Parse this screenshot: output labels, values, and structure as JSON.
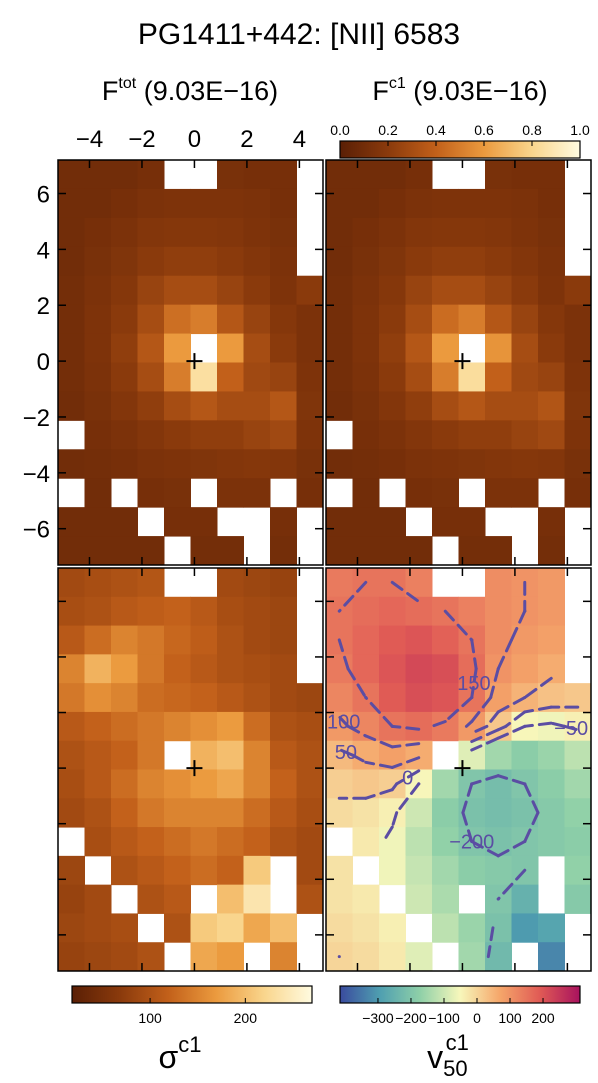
{
  "title": "PG1411+442: [NII] 6583",
  "chart_data": [
    {
      "type": "heatmap",
      "title": "F",
      "title_sup": "tot",
      "title_note": "(9.03E−16)",
      "tick_labels": true,
      "xlim": [
        -5.2,
        4.9
      ],
      "ylim": [
        -7.3,
        7.2
      ],
      "xticks": [
        {
          "value": -4,
          "label": "−4"
        },
        {
          "value": -2,
          "label": "−2"
        },
        0,
        2,
        4
      ],
      "yticks": [
        {
          "value": -6,
          "label": "−6"
        },
        {
          "value": -4,
          "label": "−4"
        },
        {
          "value": -2,
          "label": "−2"
        },
        0,
        2,
        4,
        6
      ],
      "zlim": [
        0,
        1
      ],
      "colormap": [
        "#5a1f05",
        "#8a3a0c",
        "#c2601a",
        "#eb9a3e",
        "#f9d58c",
        "#fffbe0"
      ],
      "z": [
        [
          0.1,
          0.1,
          0.1,
          0.12,
          null,
          null,
          0.13,
          0.12,
          0.12,
          null
        ],
        [
          0.1,
          0.1,
          0.12,
          0.14,
          0.15,
          0.15,
          0.15,
          0.14,
          0.12,
          null
        ],
        [
          0.1,
          0.12,
          0.14,
          0.17,
          0.18,
          0.18,
          0.17,
          0.15,
          0.13,
          null
        ],
        [
          0.1,
          0.13,
          0.16,
          0.2,
          0.22,
          0.22,
          0.2,
          0.17,
          0.14,
          null
        ],
        [
          0.11,
          0.14,
          0.18,
          0.25,
          0.3,
          0.3,
          0.25,
          0.2,
          0.15,
          0.2
        ],
        [
          0.11,
          0.15,
          0.2,
          0.3,
          0.45,
          0.5,
          0.35,
          0.25,
          0.18,
          0.14
        ],
        [
          0.11,
          0.15,
          0.22,
          0.35,
          0.6,
          null,
          0.6,
          0.3,
          0.2,
          0.14
        ],
        [
          0.11,
          0.14,
          0.2,
          0.3,
          0.5,
          0.85,
          0.4,
          0.28,
          0.25,
          0.15
        ],
        [
          0.1,
          0.13,
          0.17,
          0.22,
          0.3,
          0.35,
          0.3,
          0.3,
          0.35,
          0.16
        ],
        [
          null,
          0.12,
          0.14,
          0.17,
          0.2,
          0.22,
          0.22,
          0.25,
          0.28,
          0.15
        ],
        [
          0.1,
          0.11,
          0.12,
          0.14,
          0.15,
          0.16,
          0.17,
          0.18,
          0.17,
          0.13
        ],
        [
          null,
          0.1,
          null,
          0.12,
          0.13,
          null,
          0.14,
          0.14,
          null,
          0.12
        ],
        [
          0.1,
          0.1,
          0.1,
          null,
          0.12,
          0.12,
          null,
          null,
          0.12,
          null
        ],
        [
          0.1,
          0.1,
          0.1,
          0.1,
          null,
          0.11,
          0.11,
          null,
          0.11,
          null
        ]
      ]
    },
    {
      "type": "heatmap",
      "title": "F",
      "title_sup": "c1",
      "title_note": "(9.03E−16)",
      "xlim": [
        -5.2,
        4.9
      ],
      "ylim": [
        -7.3,
        7.2
      ],
      "xticks": [
        -4,
        -2,
        0,
        2,
        4
      ],
      "yticks": [
        -6,
        -4,
        -2,
        0,
        2,
        4,
        6
      ],
      "zlim": [
        0,
        1
      ],
      "colormap": [
        "#5a1f05",
        "#8a3a0c",
        "#c2601a",
        "#eb9a3e",
        "#f9d58c",
        "#fffbe0"
      ],
      "colorbar": {
        "position": "top",
        "ticks": [
          {
            "value": 0,
            "label": "0.0"
          },
          0.2,
          0.4,
          0.6,
          0.8,
          {
            "value": 1,
            "label": "1.0"
          }
        ]
      },
      "z": [
        [
          0.1,
          0.1,
          0.1,
          0.12,
          null,
          null,
          0.13,
          0.12,
          0.12,
          null
        ],
        [
          0.1,
          0.1,
          0.12,
          0.14,
          0.15,
          0.15,
          0.15,
          0.14,
          0.12,
          null
        ],
        [
          0.1,
          0.12,
          0.14,
          0.17,
          0.18,
          0.18,
          0.17,
          0.15,
          0.13,
          null
        ],
        [
          0.1,
          0.13,
          0.16,
          0.2,
          0.22,
          0.22,
          0.2,
          0.17,
          0.14,
          null
        ],
        [
          0.11,
          0.14,
          0.18,
          0.25,
          0.3,
          0.3,
          0.25,
          0.2,
          0.15,
          0.2
        ],
        [
          0.11,
          0.15,
          0.2,
          0.3,
          0.44,
          0.5,
          0.35,
          0.25,
          0.18,
          0.14
        ],
        [
          0.11,
          0.15,
          0.22,
          0.35,
          0.6,
          null,
          0.58,
          0.3,
          0.2,
          0.14
        ],
        [
          0.11,
          0.14,
          0.2,
          0.3,
          0.5,
          0.84,
          0.4,
          0.28,
          0.25,
          0.15
        ],
        [
          0.1,
          0.13,
          0.17,
          0.22,
          0.3,
          0.35,
          0.3,
          0.3,
          0.34,
          0.16
        ],
        [
          null,
          0.12,
          0.14,
          0.17,
          0.2,
          0.22,
          0.22,
          0.25,
          0.28,
          0.15
        ],
        [
          0.1,
          0.11,
          0.12,
          0.14,
          0.15,
          0.16,
          0.17,
          0.18,
          0.17,
          0.13
        ],
        [
          null,
          0.1,
          null,
          0.12,
          0.13,
          null,
          0.14,
          0.14,
          null,
          0.12
        ],
        [
          0.1,
          0.1,
          0.1,
          null,
          0.12,
          0.12,
          null,
          null,
          0.12,
          null
        ],
        [
          0.1,
          0.1,
          0.1,
          0.1,
          null,
          0.11,
          0.11,
          null,
          0.11,
          null
        ]
      ]
    },
    {
      "type": "heatmap",
      "xlim": [
        -5.2,
        4.9
      ],
      "ylim": [
        -7.3,
        7.2
      ],
      "xticks": [
        -4,
        -2,
        0,
        2,
        4
      ],
      "yticks": [
        -6,
        -4,
        -2,
        0,
        2,
        4,
        6
      ],
      "zlim": [
        18,
        270
      ],
      "colormap": [
        "#5a1f05",
        "#8a3a0c",
        "#c2601a",
        "#eb9a3e",
        "#f9d58c",
        "#fffbe0"
      ],
      "colorbar": {
        "position": "bottom",
        "ticks": [
          100,
          200
        ],
        "label": "σ",
        "label_sup": "c1"
      },
      "z": [
        [
          90,
          95,
          100,
          105,
          null,
          null,
          90,
          85,
          80,
          null
        ],
        [
          95,
          100,
          110,
          115,
          120,
          110,
          95,
          90,
          85,
          null
        ],
        [
          110,
          130,
          150,
          140,
          125,
          115,
          100,
          90,
          85,
          null
        ],
        [
          150,
          190,
          170,
          140,
          120,
          110,
          100,
          95,
          90,
          null
        ],
        [
          140,
          160,
          150,
          130,
          125,
          120,
          110,
          100,
          90,
          85
        ],
        [
          110,
          120,
          130,
          140,
          150,
          160,
          170,
          130,
          100,
          95
        ],
        [
          100,
          110,
          120,
          140,
          null,
          190,
          200,
          150,
          110,
          100
        ],
        [
          95,
          110,
          130,
          150,
          160,
          170,
          180,
          150,
          120,
          100
        ],
        [
          90,
          100,
          120,
          140,
          150,
          150,
          150,
          130,
          110,
          95
        ],
        [
          null,
          95,
          110,
          120,
          130,
          140,
          130,
          120,
          100,
          90
        ],
        [
          85,
          null,
          100,
          110,
          120,
          130,
          120,
          210,
          null,
          90
        ],
        [
          80,
          90,
          null,
          100,
          110,
          null,
          200,
          240,
          null,
          100
        ],
        [
          85,
          90,
          95,
          null,
          100,
          210,
          220,
          180,
          200,
          null
        ],
        [
          80,
          85,
          90,
          100,
          null,
          180,
          170,
          null,
          150,
          null
        ]
      ]
    },
    {
      "type": "heatmap",
      "xlim": [
        -5.2,
        4.9
      ],
      "ylim": [
        -7.3,
        7.2
      ],
      "xticks": [
        -4,
        -2,
        0,
        2,
        4
      ],
      "yticks": [
        -6,
        -4,
        -2,
        0,
        2,
        4,
        6
      ],
      "zlim": [
        -415,
        312
      ],
      "colormap": [
        "#3a4b9e",
        "#4f9fb0",
        "#8fd0a8",
        "#f7f7bb",
        "#f5a66a",
        "#e05a55",
        "#a8125e"
      ],
      "colorbar": {
        "position": "bottom",
        "ticks": [
          {
            "value": -300,
            "label": "−300"
          },
          {
            "value": -200,
            "label": "−200"
          },
          {
            "value": -100,
            "label": "−100"
          },
          0,
          100,
          200
        ],
        "label": "v",
        "label_sub": "50",
        "label_sup": "c1"
      },
      "contours": {
        "color": "#5b4da3",
        "levels": [
          {
            "value": -200,
            "label": "−200"
          },
          {
            "value": -50,
            "label": "−50"
          },
          0,
          50,
          100,
          150
        ]
      },
      "z": [
        [
          140,
          150,
          150,
          130,
          null,
          null,
          110,
          100,
          90,
          null
        ],
        [
          150,
          160,
          170,
          160,
          150,
          130,
          110,
          100,
          90,
          null
        ],
        [
          150,
          170,
          190,
          200,
          180,
          150,
          110,
          90,
          80,
          null
        ],
        [
          140,
          170,
          200,
          220,
          210,
          160,
          100,
          80,
          60,
          null
        ],
        [
          120,
          150,
          190,
          210,
          200,
          150,
          80,
          50,
          30,
          20
        ],
        [
          90,
          120,
          150,
          160,
          140,
          90,
          20,
          -50,
          -60,
          -40
        ],
        [
          40,
          60,
          80,
          60,
          null,
          -80,
          -150,
          -180,
          -160,
          -120
        ],
        [
          10,
          20,
          10,
          -50,
          -150,
          -200,
          -220,
          -200,
          -180,
          -150
        ],
        [
          -10,
          -20,
          -40,
          -100,
          -180,
          -210,
          -220,
          -210,
          -190,
          -170
        ],
        [
          null,
          -30,
          -60,
          -120,
          -170,
          -200,
          -210,
          -200,
          -190,
          -180
        ],
        [
          -20,
          null,
          -60,
          -110,
          -150,
          -180,
          -190,
          -200,
          null,
          -170
        ],
        [
          -20,
          -30,
          null,
          -100,
          -140,
          null,
          -200,
          -250,
          null,
          -190
        ],
        [
          -10,
          -20,
          -40,
          null,
          -120,
          -160,
          -210,
          -300,
          -280,
          null
        ],
        [
          0,
          -10,
          -30,
          -80,
          null,
          -150,
          -230,
          null,
          -330,
          null
        ]
      ]
    }
  ]
}
